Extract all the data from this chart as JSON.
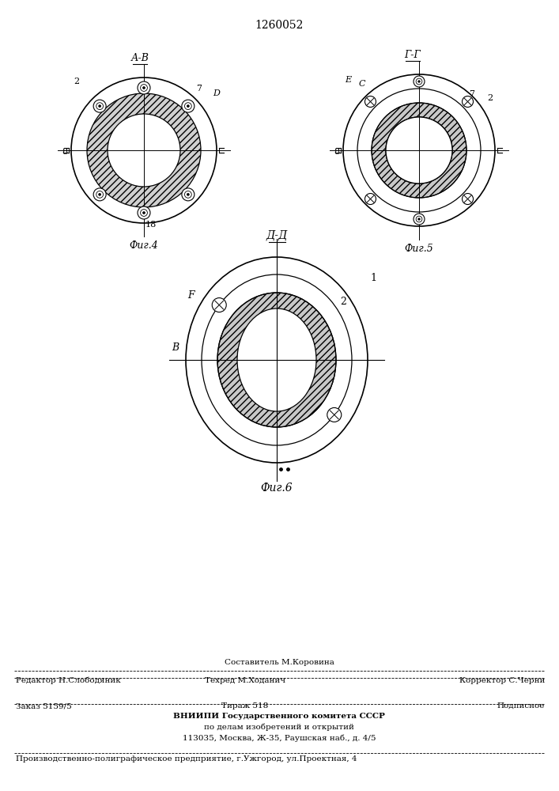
{
  "patent_number": "1260052",
  "fig4_title": "А-В",
  "fig5_title": "Г-Г",
  "fig6_title": "Д-Д",
  "fig4_caption": "Фиг.4",
  "fig5_caption": "Фиг.5",
  "fig6_caption": "Фиг.6",
  "footer_compiled": "Составитель М.Коровина",
  "footer_editor": "Редактор Н.Слободяник",
  "footer_tech": "Техред М.Ходанич",
  "footer_corrector": "Корректор С.Черни",
  "footer_order": "Заказ 5159/5",
  "footer_tirazh": "Тираж 518",
  "footer_podp": "Подписное",
  "footer_vniip1": "ВНИИПИ Государственного комитета СССР",
  "footer_vniip2": "по делам изобретений и открытий",
  "footer_vniip3": "113035, Москва, Ж-35, Раушская наб., д. 4/5",
  "footer_production": "Производственно-полиграфическое предприятие, г.Ужгород, ул.Проектная, 4"
}
